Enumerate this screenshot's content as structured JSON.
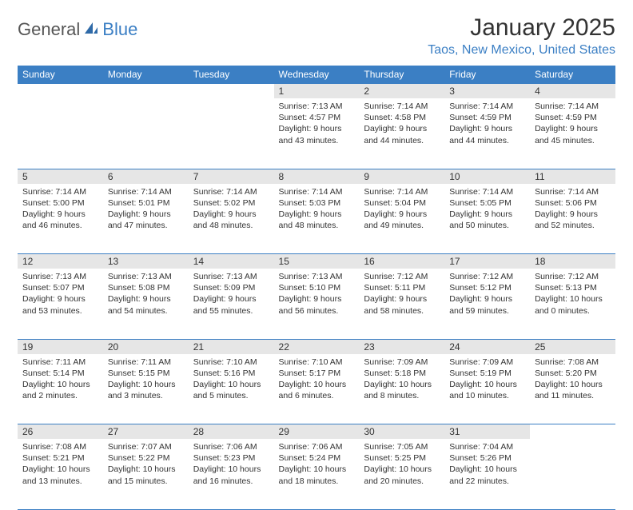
{
  "brand": {
    "part1": "General",
    "part2": "Blue"
  },
  "title": "January 2025",
  "location": "Taos, New Mexico, United States",
  "colors": {
    "accent": "#3b7fc4",
    "header_bg": "#3b7fc4",
    "header_text": "#ffffff",
    "daynum_bg": "#e6e6e6",
    "text": "#333333",
    "background": "#ffffff"
  },
  "weekdays": [
    "Sunday",
    "Monday",
    "Tuesday",
    "Wednesday",
    "Thursday",
    "Friday",
    "Saturday"
  ],
  "weeks": [
    {
      "nums": [
        "",
        "",
        "",
        "1",
        "2",
        "3",
        "4"
      ],
      "cells": [
        null,
        null,
        null,
        {
          "sunrise": "Sunrise: 7:13 AM",
          "sunset": "Sunset: 4:57 PM",
          "daylight1": "Daylight: 9 hours",
          "daylight2": "and 43 minutes."
        },
        {
          "sunrise": "Sunrise: 7:14 AM",
          "sunset": "Sunset: 4:58 PM",
          "daylight1": "Daylight: 9 hours",
          "daylight2": "and 44 minutes."
        },
        {
          "sunrise": "Sunrise: 7:14 AM",
          "sunset": "Sunset: 4:59 PM",
          "daylight1": "Daylight: 9 hours",
          "daylight2": "and 44 minutes."
        },
        {
          "sunrise": "Sunrise: 7:14 AM",
          "sunset": "Sunset: 4:59 PM",
          "daylight1": "Daylight: 9 hours",
          "daylight2": "and 45 minutes."
        }
      ]
    },
    {
      "nums": [
        "5",
        "6",
        "7",
        "8",
        "9",
        "10",
        "11"
      ],
      "cells": [
        {
          "sunrise": "Sunrise: 7:14 AM",
          "sunset": "Sunset: 5:00 PM",
          "daylight1": "Daylight: 9 hours",
          "daylight2": "and 46 minutes."
        },
        {
          "sunrise": "Sunrise: 7:14 AM",
          "sunset": "Sunset: 5:01 PM",
          "daylight1": "Daylight: 9 hours",
          "daylight2": "and 47 minutes."
        },
        {
          "sunrise": "Sunrise: 7:14 AM",
          "sunset": "Sunset: 5:02 PM",
          "daylight1": "Daylight: 9 hours",
          "daylight2": "and 48 minutes."
        },
        {
          "sunrise": "Sunrise: 7:14 AM",
          "sunset": "Sunset: 5:03 PM",
          "daylight1": "Daylight: 9 hours",
          "daylight2": "and 48 minutes."
        },
        {
          "sunrise": "Sunrise: 7:14 AM",
          "sunset": "Sunset: 5:04 PM",
          "daylight1": "Daylight: 9 hours",
          "daylight2": "and 49 minutes."
        },
        {
          "sunrise": "Sunrise: 7:14 AM",
          "sunset": "Sunset: 5:05 PM",
          "daylight1": "Daylight: 9 hours",
          "daylight2": "and 50 minutes."
        },
        {
          "sunrise": "Sunrise: 7:14 AM",
          "sunset": "Sunset: 5:06 PM",
          "daylight1": "Daylight: 9 hours",
          "daylight2": "and 52 minutes."
        }
      ]
    },
    {
      "nums": [
        "12",
        "13",
        "14",
        "15",
        "16",
        "17",
        "18"
      ],
      "cells": [
        {
          "sunrise": "Sunrise: 7:13 AM",
          "sunset": "Sunset: 5:07 PM",
          "daylight1": "Daylight: 9 hours",
          "daylight2": "and 53 minutes."
        },
        {
          "sunrise": "Sunrise: 7:13 AM",
          "sunset": "Sunset: 5:08 PM",
          "daylight1": "Daylight: 9 hours",
          "daylight2": "and 54 minutes."
        },
        {
          "sunrise": "Sunrise: 7:13 AM",
          "sunset": "Sunset: 5:09 PM",
          "daylight1": "Daylight: 9 hours",
          "daylight2": "and 55 minutes."
        },
        {
          "sunrise": "Sunrise: 7:13 AM",
          "sunset": "Sunset: 5:10 PM",
          "daylight1": "Daylight: 9 hours",
          "daylight2": "and 56 minutes."
        },
        {
          "sunrise": "Sunrise: 7:12 AM",
          "sunset": "Sunset: 5:11 PM",
          "daylight1": "Daylight: 9 hours",
          "daylight2": "and 58 minutes."
        },
        {
          "sunrise": "Sunrise: 7:12 AM",
          "sunset": "Sunset: 5:12 PM",
          "daylight1": "Daylight: 9 hours",
          "daylight2": "and 59 minutes."
        },
        {
          "sunrise": "Sunrise: 7:12 AM",
          "sunset": "Sunset: 5:13 PM",
          "daylight1": "Daylight: 10 hours",
          "daylight2": "and 0 minutes."
        }
      ]
    },
    {
      "nums": [
        "19",
        "20",
        "21",
        "22",
        "23",
        "24",
        "25"
      ],
      "cells": [
        {
          "sunrise": "Sunrise: 7:11 AM",
          "sunset": "Sunset: 5:14 PM",
          "daylight1": "Daylight: 10 hours",
          "daylight2": "and 2 minutes."
        },
        {
          "sunrise": "Sunrise: 7:11 AM",
          "sunset": "Sunset: 5:15 PM",
          "daylight1": "Daylight: 10 hours",
          "daylight2": "and 3 minutes."
        },
        {
          "sunrise": "Sunrise: 7:10 AM",
          "sunset": "Sunset: 5:16 PM",
          "daylight1": "Daylight: 10 hours",
          "daylight2": "and 5 minutes."
        },
        {
          "sunrise": "Sunrise: 7:10 AM",
          "sunset": "Sunset: 5:17 PM",
          "daylight1": "Daylight: 10 hours",
          "daylight2": "and 6 minutes."
        },
        {
          "sunrise": "Sunrise: 7:09 AM",
          "sunset": "Sunset: 5:18 PM",
          "daylight1": "Daylight: 10 hours",
          "daylight2": "and 8 minutes."
        },
        {
          "sunrise": "Sunrise: 7:09 AM",
          "sunset": "Sunset: 5:19 PM",
          "daylight1": "Daylight: 10 hours",
          "daylight2": "and 10 minutes."
        },
        {
          "sunrise": "Sunrise: 7:08 AM",
          "sunset": "Sunset: 5:20 PM",
          "daylight1": "Daylight: 10 hours",
          "daylight2": "and 11 minutes."
        }
      ]
    },
    {
      "nums": [
        "26",
        "27",
        "28",
        "29",
        "30",
        "31",
        ""
      ],
      "cells": [
        {
          "sunrise": "Sunrise: 7:08 AM",
          "sunset": "Sunset: 5:21 PM",
          "daylight1": "Daylight: 10 hours",
          "daylight2": "and 13 minutes."
        },
        {
          "sunrise": "Sunrise: 7:07 AM",
          "sunset": "Sunset: 5:22 PM",
          "daylight1": "Daylight: 10 hours",
          "daylight2": "and 15 minutes."
        },
        {
          "sunrise": "Sunrise: 7:06 AM",
          "sunset": "Sunset: 5:23 PM",
          "daylight1": "Daylight: 10 hours",
          "daylight2": "and 16 minutes."
        },
        {
          "sunrise": "Sunrise: 7:06 AM",
          "sunset": "Sunset: 5:24 PM",
          "daylight1": "Daylight: 10 hours",
          "daylight2": "and 18 minutes."
        },
        {
          "sunrise": "Sunrise: 7:05 AM",
          "sunset": "Sunset: 5:25 PM",
          "daylight1": "Daylight: 10 hours",
          "daylight2": "and 20 minutes."
        },
        {
          "sunrise": "Sunrise: 7:04 AM",
          "sunset": "Sunset: 5:26 PM",
          "daylight1": "Daylight: 10 hours",
          "daylight2": "and 22 minutes."
        },
        null
      ]
    }
  ]
}
